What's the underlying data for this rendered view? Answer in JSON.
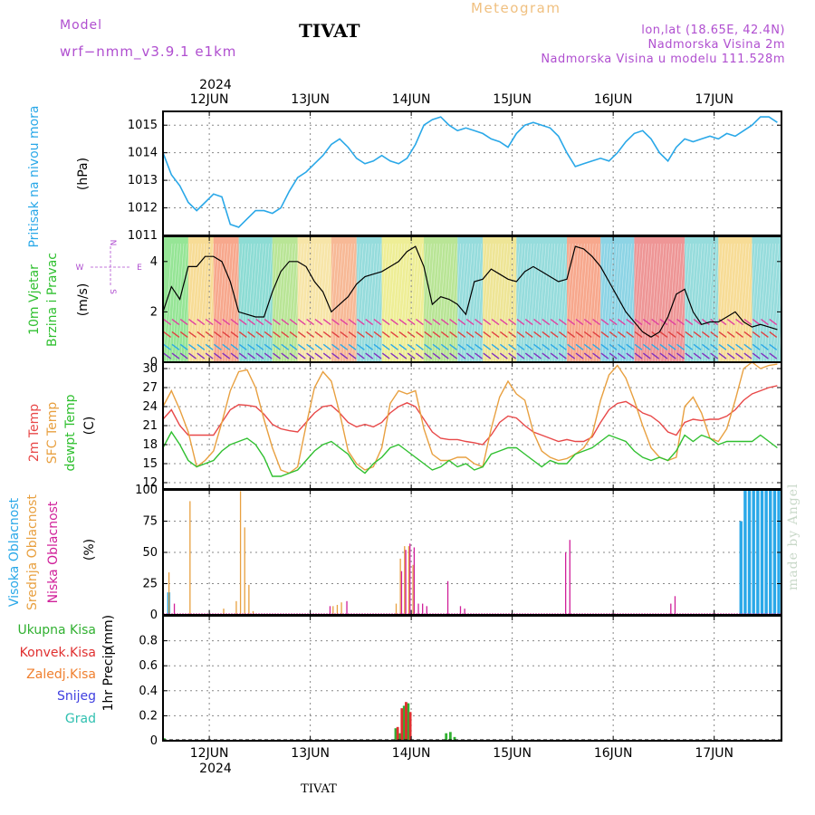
{
  "header": {
    "model_label": "Model",
    "model_name": "wrf−nmm_v3.9.1  e1km",
    "station": "TIVAT",
    "title": "Meteogram",
    "info_line1": "lon,lat (18.65E, 42.4N)",
    "info_line2": "Nadmorska Visina 2m",
    "info_line3": "Nadmorska Visina u modelu 111.528m",
    "watermark": "made by Angel",
    "footer_station": "TIVAT"
  },
  "colors": {
    "pressure": "#2aa8e8",
    "temp2m": "#e84848",
    "sfc": "#e8a040",
    "dewpt": "#30c030",
    "purple": "#b04fd0",
    "high_cloud": "#2aa8e8",
    "mid_cloud": "#e8a040",
    "low_cloud": "#d0209a",
    "total_precip": "#30b030",
    "conv_precip": "#e03030",
    "frozen_precip": "#f08030",
    "snow": "#4040e0",
    "graupel": "#30c0b0"
  },
  "chart_data": [
    {
      "type": "line",
      "panel": "pressure",
      "ylabel_main": "Pritisak na nivou mora",
      "ylabel_unit": "(hPa)",
      "ylim": [
        1011,
        1015.5
      ],
      "yticks": [
        1011,
        1012,
        1013,
        1014,
        1015
      ],
      "series": [
        {
          "x": [
            0,
            2,
            4,
            6,
            8,
            10,
            12,
            14,
            16,
            18,
            20,
            22,
            24,
            26,
            28,
            30,
            32,
            34,
            36,
            38,
            40,
            42,
            44,
            46,
            48,
            50,
            52,
            54,
            56,
            58,
            60,
            62,
            64,
            66,
            68,
            70,
            72,
            74,
            76,
            78,
            80,
            82,
            84,
            86,
            88,
            90,
            92,
            94,
            96,
            98,
            100,
            102,
            104,
            106,
            108,
            110,
            112,
            114,
            116,
            118,
            120,
            122,
            124,
            126,
            128,
            130,
            132,
            134,
            136,
            138,
            140,
            142,
            144,
            146
          ],
          "values": [
            1014.0,
            1013.2,
            1012.8,
            1012.2,
            1011.9,
            1012.2,
            1012.5,
            1012.4,
            1011.4,
            1011.3,
            1011.6,
            1011.9,
            1011.9,
            1011.8,
            1012.0,
            1012.6,
            1013.1,
            1013.3,
            1013.6,
            1013.9,
            1014.3,
            1014.5,
            1014.2,
            1013.8,
            1013.6,
            1013.7,
            1013.9,
            1013.7,
            1013.6,
            1013.8,
            1014.3,
            1015.0,
            1015.2,
            1015.3,
            1015.0,
            1014.8,
            1014.9,
            1014.8,
            1014.7,
            1014.5,
            1014.4,
            1014.2,
            1014.7,
            1015.0,
            1015.1,
            1015.0,
            1014.9,
            1014.6,
            1014.0,
            1013.5,
            1013.6,
            1013.7,
            1013.8,
            1013.7,
            1014.0,
            1014.4,
            1014.7,
            1014.8,
            1014.5,
            1014.0,
            1013.7,
            1014.2,
            1014.5,
            1014.4,
            1014.5,
            1014.6,
            1014.5,
            1014.7,
            1014.6,
            1014.8,
            1015.0,
            1015.3,
            1015.3,
            1015.1
          ]
        }
      ]
    },
    {
      "type": "line",
      "panel": "wind",
      "ylabel_main1": "10m Vjetar",
      "ylabel_main2": "Brzina i Pravac",
      "ylabel_unit": "(m/s)",
      "ylim": [
        0,
        5
      ],
      "yticks": [
        0,
        2,
        4
      ],
      "compass": {
        "n": "N",
        "s": "S",
        "e": "E",
        "w": "W"
      },
      "series": [
        {
          "name": "",
          "x": [
            0,
            2,
            4,
            6,
            8,
            10,
            12,
            14,
            16,
            18,
            20,
            22,
            24,
            26,
            28,
            30,
            32,
            34,
            36,
            38,
            40,
            42,
            44,
            46,
            48,
            50,
            52,
            54,
            56,
            58,
            60,
            62,
            64,
            66,
            68,
            70,
            72,
            74,
            76,
            78,
            80,
            82,
            84,
            86,
            88,
            90,
            92,
            94,
            96,
            98,
            100,
            102,
            104,
            106,
            108,
            110,
            112,
            114,
            116,
            118,
            120,
            122,
            124,
            126,
            128,
            130,
            132,
            134,
            136,
            138,
            140,
            142,
            144,
            146
          ],
          "values": [
            2.0,
            3.0,
            2.5,
            3.8,
            3.8,
            4.2,
            4.2,
            4.0,
            3.2,
            2.0,
            1.9,
            1.8,
            1.8,
            2.8,
            3.6,
            4.0,
            4.0,
            3.8,
            3.2,
            2.8,
            2.0,
            2.3,
            2.6,
            3.1,
            3.4,
            3.5,
            3.6,
            3.8,
            4.0,
            4.4,
            4.6,
            3.8,
            2.3,
            2.6,
            2.5,
            2.3,
            1.9,
            3.2,
            3.3,
            3.7,
            3.5,
            3.3,
            3.2,
            3.6,
            3.8,
            3.6,
            3.4,
            3.2,
            3.3,
            4.6,
            4.5,
            4.2,
            3.8,
            3.2,
            2.6,
            2.0,
            1.6,
            1.2,
            1.0,
            1.2,
            1.8,
            2.7,
            2.9,
            2.0,
            1.5,
            1.6,
            1.6,
            1.8,
            2.0,
            1.6,
            1.4,
            1.5,
            1.4,
            1.3
          ]
        }
      ]
    },
    {
      "type": "line",
      "panel": "temperature",
      "ylabel_main1": "2m Temp",
      "ylabel_main2": "SFC Temp",
      "ylabel_main3": "dewpt Temp",
      "ylabel_unit": "(C)",
      "ylim": [
        11,
        31
      ],
      "yticks": [
        12,
        15,
        18,
        21,
        24,
        27,
        30
      ],
      "series": [
        {
          "name": "2m Temp",
          "x": [
            0,
            2,
            4,
            6,
            8,
            10,
            12,
            14,
            16,
            18,
            20,
            22,
            24,
            26,
            28,
            30,
            32,
            34,
            36,
            38,
            40,
            42,
            44,
            46,
            48,
            50,
            52,
            54,
            56,
            58,
            60,
            62,
            64,
            66,
            68,
            70,
            72,
            74,
            76,
            78,
            80,
            82,
            84,
            86,
            88,
            90,
            92,
            94,
            96,
            98,
            100,
            102,
            104,
            106,
            108,
            110,
            112,
            114,
            116,
            118,
            120,
            122,
            124,
            126,
            128,
            130,
            132,
            134,
            136,
            138,
            140,
            142,
            144,
            146
          ],
          "values": [
            22.0,
            23.5,
            21.0,
            19.5,
            19.5,
            19.5,
            19.5,
            21.5,
            23.5,
            24.3,
            24.2,
            24.0,
            22.8,
            21.2,
            20.5,
            20.2,
            20.0,
            21.5,
            23.0,
            24.0,
            24.2,
            23.0,
            21.5,
            20.8,
            21.2,
            20.8,
            21.5,
            23.0,
            24.0,
            24.6,
            24.0,
            22.0,
            20.0,
            19.0,
            18.8,
            18.8,
            18.5,
            18.3,
            18.0,
            19.5,
            21.5,
            22.5,
            22.2,
            21.0,
            20.0,
            19.5,
            19.0,
            18.5,
            18.8,
            18.5,
            18.5,
            19.2,
            21.5,
            23.5,
            24.5,
            24.8,
            24.0,
            23.0,
            22.5,
            21.5,
            20.0,
            19.5,
            21.5,
            22.0,
            21.8,
            22.0,
            22.0,
            22.5,
            23.5,
            25.0,
            26.0,
            26.5,
            27.0,
            27.3
          ]
        },
        {
          "name": "SFC Temp",
          "x": [
            0,
            2,
            4,
            6,
            8,
            10,
            12,
            14,
            16,
            18,
            20,
            22,
            24,
            26,
            28,
            30,
            32,
            34,
            36,
            38,
            40,
            42,
            44,
            46,
            48,
            50,
            52,
            54,
            56,
            58,
            60,
            62,
            64,
            66,
            68,
            70,
            72,
            74,
            76,
            78,
            80,
            82,
            84,
            86,
            88,
            90,
            92,
            94,
            96,
            98,
            100,
            102,
            104,
            106,
            108,
            110,
            112,
            114,
            116,
            118,
            120,
            122,
            124,
            126,
            128,
            130,
            132,
            134,
            136,
            138,
            140,
            142,
            144,
            146
          ],
          "values": [
            24.0,
            26.5,
            23.5,
            20.0,
            14.5,
            15.5,
            17.0,
            21.5,
            26.5,
            29.5,
            29.8,
            27.0,
            22.0,
            17.5,
            14.0,
            13.5,
            14.5,
            21.0,
            27.0,
            29.5,
            28.0,
            23.0,
            17.0,
            15.0,
            14.0,
            14.5,
            17.5,
            24.5,
            26.5,
            26.0,
            26.5,
            20.5,
            16.5,
            15.5,
            15.5,
            16.0,
            16.0,
            15.0,
            14.5,
            20.5,
            25.5,
            28.0,
            26.0,
            25.0,
            20.0,
            17.0,
            16.0,
            15.5,
            15.8,
            16.5,
            17.5,
            19.5,
            25.0,
            29.0,
            30.5,
            28.5,
            25.0,
            21.0,
            17.5,
            16.0,
            15.5,
            16.0,
            24.0,
            25.5,
            23.0,
            19.0,
            18.5,
            20.5,
            25.0,
            30.0,
            31.0,
            30.0,
            30.5,
            30.7
          ]
        },
        {
          "name": "dewpt Temp",
          "x": [
            0,
            2,
            4,
            6,
            8,
            10,
            12,
            14,
            16,
            18,
            20,
            22,
            24,
            26,
            28,
            30,
            32,
            34,
            36,
            38,
            40,
            42,
            44,
            46,
            48,
            50,
            52,
            54,
            56,
            58,
            60,
            62,
            64,
            66,
            68,
            70,
            72,
            74,
            76,
            78,
            80,
            82,
            84,
            86,
            88,
            90,
            92,
            94,
            96,
            98,
            100,
            102,
            104,
            106,
            108,
            110,
            112,
            114,
            116,
            118,
            120,
            122,
            124,
            126,
            128,
            130,
            132,
            134,
            136,
            138,
            140,
            142,
            144,
            146
          ],
          "values": [
            17.5,
            20.0,
            18.0,
            15.5,
            14.5,
            15.0,
            15.5,
            17.0,
            18.0,
            18.5,
            19.0,
            18.0,
            16.0,
            13.0,
            13.0,
            13.5,
            14.0,
            15.5,
            17.0,
            18.0,
            18.5,
            17.5,
            16.5,
            14.5,
            13.5,
            15.0,
            16.0,
            17.5,
            18.0,
            17.0,
            16.0,
            15.0,
            14.0,
            14.5,
            15.5,
            14.5,
            15.0,
            14.0,
            14.5,
            16.5,
            17.0,
            17.5,
            17.5,
            16.5,
            15.5,
            14.5,
            15.5,
            15.0,
            15.0,
            16.5,
            17.0,
            17.5,
            18.5,
            19.5,
            19.0,
            18.5,
            17.0,
            16.0,
            15.5,
            16.0,
            15.5,
            17.0,
            19.5,
            18.5,
            19.5,
            19.0,
            18.0,
            18.5,
            18.5,
            18.5,
            18.5,
            19.5,
            18.5,
            17.5
          ]
        }
      ]
    },
    {
      "type": "bar",
      "panel": "clouds",
      "ylabel_main1": "Visoka Oblacnost",
      "ylabel_main2": "Srednja Oblacnost",
      "ylabel_main3": "Niska Oblacnost",
      "ylabel_unit": "(%)",
      "ylim": [
        0,
        100
      ],
      "yticks": [
        0,
        25,
        50,
        75,
        100
      ],
      "series": [
        {
          "name": "Visoka Oblacnost",
          "x": [
            1,
            137,
            138,
            139,
            140,
            141,
            142,
            143,
            144,
            145,
            146
          ],
          "values": [
            18,
            75,
            100,
            100,
            100,
            100,
            100,
            100,
            100,
            100,
            100
          ]
        },
        {
          "name": "Srednja Oblacnost",
          "x": [
            1,
            6,
            14,
            17,
            18,
            19,
            20,
            21,
            40,
            41,
            42,
            55,
            56,
            57,
            58,
            59
          ],
          "values": [
            34,
            91,
            5,
            11,
            99,
            70,
            24,
            3,
            7,
            8,
            10,
            9,
            45,
            55,
            55,
            40
          ]
        },
        {
          "name": "Niska Oblacnost",
          "x": [
            2,
            39,
            43,
            56,
            57,
            58,
            59,
            60,
            61,
            62,
            67,
            70,
            71,
            95,
            96,
            120,
            121
          ],
          "values": [
            9,
            7,
            11,
            35,
            52,
            57,
            54,
            9,
            9,
            7,
            27,
            7,
            5,
            50,
            60,
            9,
            15
          ]
        }
      ]
    },
    {
      "type": "bar",
      "panel": "precipitation",
      "ylabel_main": "1hr Precip",
      "ylabel_unit": "(mm)",
      "legend": [
        "Ukupna Kisa",
        "Konvek.Kisa",
        "Zaledj.Kisa",
        "Snijeg",
        "Grad"
      ],
      "ylim": [
        0,
        1.0
      ],
      "yticks": [
        0,
        0.2,
        0.4,
        0.6,
        0.8
      ],
      "series": [
        {
          "name": "Ukupna Kisa",
          "x": [
            0,
            55,
            56,
            57,
            58,
            67,
            68,
            69
          ],
          "values": [
            0.02,
            0.1,
            0.06,
            0.28,
            0.3,
            0.06,
            0.07,
            0.03
          ]
        },
        {
          "name": "Konvek.Kisa",
          "x": [
            55,
            56,
            57,
            58
          ],
          "values": [
            0.11,
            0.26,
            0.31,
            0.23
          ]
        }
      ]
    }
  ],
  "x_axis": {
    "year": "2024",
    "days": [
      "12JUN",
      "13JUN",
      "14JUN",
      "15JUN",
      "16JUN",
      "17JUN"
    ],
    "day_hours": [
      11,
      35,
      59,
      83,
      107,
      131
    ],
    "hours_total": 147
  }
}
